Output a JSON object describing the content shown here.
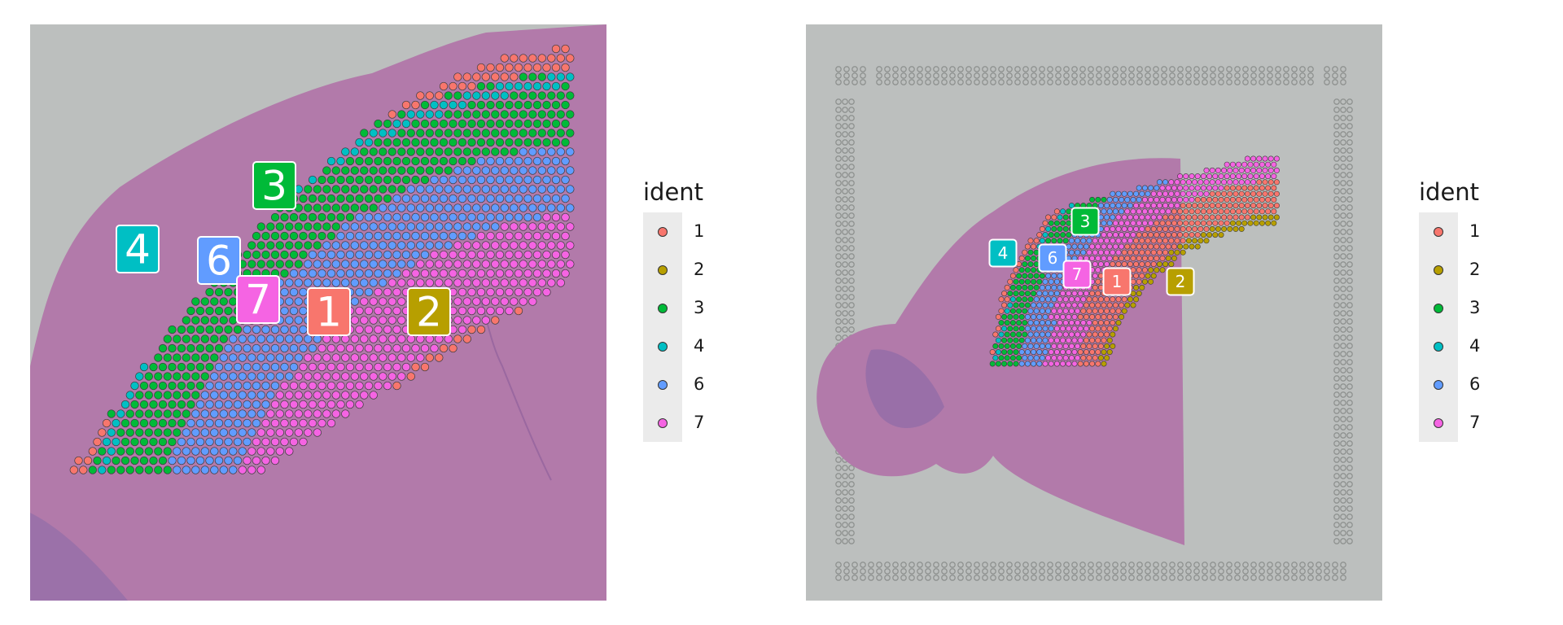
{
  "legend": {
    "title": "ident",
    "items": [
      {
        "label": "1",
        "color": "#F8766D"
      },
      {
        "label": "2",
        "color": "#B79F00"
      },
      {
        "label": "3",
        "color": "#00BA38"
      },
      {
        "label": "4",
        "color": "#00BFC4"
      },
      {
        "label": "6",
        "color": "#619CFF"
      },
      {
        "label": "7",
        "color": "#F564E3"
      }
    ]
  },
  "panels": [
    {
      "view": "zoomed cortex region, H&E tissue background",
      "cluster_labels": [
        "3",
        "4",
        "6",
        "7",
        "1",
        "2"
      ]
    },
    {
      "view": "full capture area with fiducial frame, H&E tissue background",
      "cluster_labels": [
        "3",
        "4",
        "6",
        "7",
        "1",
        "2"
      ]
    }
  ],
  "colors": {
    "tissue": "#b27aaa",
    "slide": "#bcbfbe",
    "label_text": "#ffffff"
  }
}
